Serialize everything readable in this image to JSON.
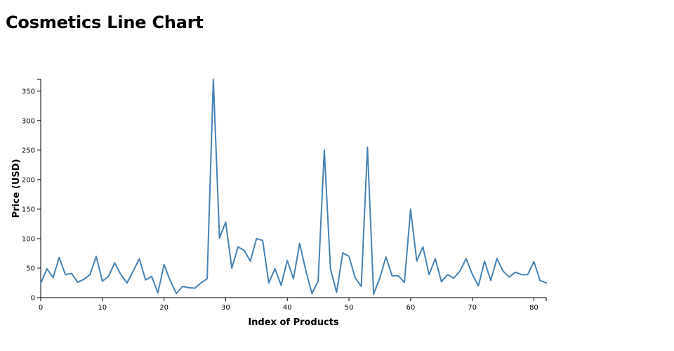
{
  "chart_data": {
    "type": "line",
    "title": "Cosmetics Line Chart",
    "xlabel": "Index of Products",
    "ylabel": "Price (USD)",
    "xlim": [
      0,
      82
    ],
    "ylim": [
      0,
      370
    ],
    "x_ticks": [
      0,
      10,
      20,
      30,
      40,
      50,
      60,
      70,
      80
    ],
    "y_ticks": [
      0,
      50,
      100,
      150,
      200,
      250,
      300,
      350
    ],
    "grid": false,
    "color": "#4682b4",
    "series": [
      {
        "x": [
          0,
          1,
          2,
          3,
          4,
          5,
          6,
          7,
          8,
          9,
          10,
          11,
          12,
          13,
          14,
          15,
          16,
          17,
          18,
          19,
          20,
          21,
          22,
          23,
          24,
          25,
          26,
          27,
          28,
          29,
          30,
          31,
          32,
          33,
          34,
          35,
          36,
          37,
          38,
          39,
          40,
          41,
          42,
          43,
          44,
          45,
          46,
          47,
          48,
          49,
          50,
          51,
          52,
          53,
          54,
          55,
          56,
          57,
          58,
          59,
          60,
          61,
          62,
          63,
          64,
          65,
          66,
          67,
          68,
          69,
          70,
          71,
          72,
          73,
          74,
          75,
          76,
          77,
          78,
          79,
          80,
          81,
          82
        ],
        "values": [
          24,
          49,
          34,
          68,
          39,
          41,
          26,
          31,
          39,
          70,
          28,
          36,
          59,
          39,
          25,
          45,
          66,
          30,
          36,
          8,
          56,
          29,
          7,
          19,
          17,
          16,
          25,
          32,
          370,
          101,
          128,
          50,
          86,
          80,
          62,
          100,
          97,
          25,
          49,
          21,
          63,
          32,
          92,
          46,
          7,
          28,
          250,
          49,
          9,
          76,
          70,
          34,
          19,
          255,
          6,
          33,
          69,
          37,
          37,
          26,
          150,
          62,
          86,
          39,
          66,
          27,
          39,
          33,
          45,
          66,
          40,
          20,
          62,
          29,
          66,
          45,
          35,
          43,
          39,
          39,
          61,
          29,
          25
        ]
      }
    ]
  }
}
